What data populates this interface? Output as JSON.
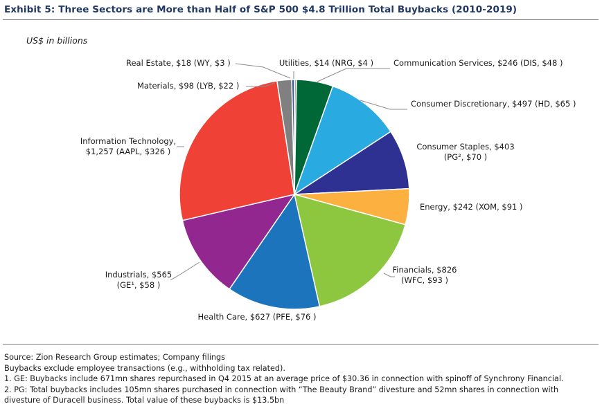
{
  "title": "Exhibit 5: Three Sectors are More than Half of S&P 500 $4.8 Trillion Total Buybacks (2010-2019)",
  "units_label": "US$ in billions",
  "chart_data": {
    "type": "pie",
    "title": "Exhibit 5: Three Sectors are More than Half of S&P 500 $4.8 Trillion Total Buybacks (2010-2019)",
    "units": "US$ in billions",
    "start_angle_deg": 0,
    "direction": "clockwise",
    "slices": [
      {
        "sector": "Utilities",
        "value": 14,
        "label_lines": [
          "Utilities, $14 (NRG, $4 )"
        ],
        "color": "#a6a6a6"
      },
      {
        "sector": "Communication Services",
        "value": 246,
        "label_lines": [
          "Communication Services, $246 (DIS, $48 )"
        ],
        "color": "#006837"
      },
      {
        "sector": "Consumer Discretionary",
        "value": 497,
        "label_lines": [
          "Consumer Discretionary, $497 (HD, $65 )"
        ],
        "color": "#29abe2"
      },
      {
        "sector": "Consumer Staples",
        "value": 403,
        "label_lines": [
          "Consumer Staples, $403",
          "(PG², $70 )"
        ],
        "color": "#2e3192"
      },
      {
        "sector": "Energy",
        "value": 242,
        "label_lines": [
          "Energy, $242 (XOM, $91 )"
        ],
        "color": "#fbb040"
      },
      {
        "sector": "Financials",
        "value": 826,
        "label_lines": [
          "Financials, $826",
          "(WFC, $93 )"
        ],
        "color": "#8dc63f"
      },
      {
        "sector": "Health Care",
        "value": 627,
        "label_lines": [
          "Health Care, $627 (PFE, $76 )"
        ],
        "color": "#1c75bc"
      },
      {
        "sector": "Industrials",
        "value": 565,
        "label_lines": [
          "Industrials, $565",
          "(GE¹, $58 )"
        ],
        "color": "#92278f"
      },
      {
        "sector": "Information Technology",
        "value": 1257,
        "label_lines": [
          "Information Technology,",
          "$1,257 (AAPL, $326 )"
        ],
        "color": "#ef4136"
      },
      {
        "sector": "Materials",
        "value": 98,
        "label_lines": [
          "Materials, $98 (LYB, $22 )"
        ],
        "color": "#808080"
      },
      {
        "sector": "Real Estate",
        "value": 18,
        "label_lines": [
          "Real Estate, $18 (WY, $3 )"
        ],
        "color": "#3b5998"
      }
    ]
  },
  "footnotes": {
    "source": "Source: Zion Research Group estimates; Company filings",
    "note": "Buybacks exclude employee transactions (e.g., withholding tax related).",
    "note1": "1. GE: Buybacks include 671mn shares repurchased in Q4 2015 at an average price of $30.36 in connection with spinoff of Synchrony Financial.",
    "note2_line1": "2. PG: Total buybacks includes 105mn shares purchased in connection with “The Beauty Brand” divesture and 52mn shares in connection with",
    "note2_line2": "divesture of Duracell business. Total value of these buybacks is $13.5bn"
  }
}
